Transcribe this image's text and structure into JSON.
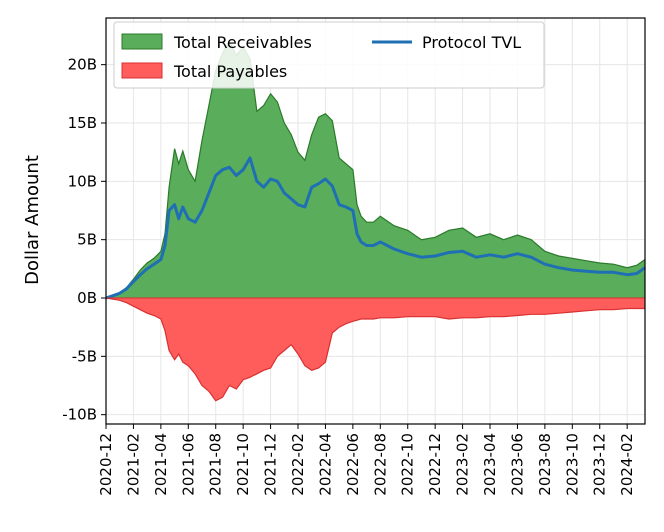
{
  "chart_data": {
    "type": "area",
    "title": "",
    "xlabel": "",
    "ylabel": "Dollar Amount",
    "ylim": [
      -10.8,
      24
    ],
    "y_unit": "billions USD",
    "yticks": [
      -10,
      -5,
      0,
      5,
      10,
      15,
      20
    ],
    "ytick_labels": [
      "-10B",
      "-5B",
      "0B",
      "5B",
      "10B",
      "15B",
      "20B"
    ],
    "xlim": [
      0,
      39.3
    ],
    "x_unit": "months since 2020-12",
    "xticks": [
      0,
      2,
      4,
      6,
      8,
      10,
      12,
      14,
      16,
      18,
      20,
      22,
      24,
      26,
      28,
      30,
      32,
      34,
      36,
      38
    ],
    "xtick_labels": [
      "2020-12",
      "2021-02",
      "2021-04",
      "2021-06",
      "2021-08",
      "2021-10",
      "2021-12",
      "2022-02",
      "2022-04",
      "2022-06",
      "2022-08",
      "2022-10",
      "2022-12",
      "2023-02",
      "2023-04",
      "2023-06",
      "2023-08",
      "2023-10",
      "2023-12",
      "2024-02"
    ],
    "grid": true,
    "legend_position": "top-left",
    "x": [
      0,
      0.5,
      1,
      1.5,
      2,
      2.5,
      3,
      3.5,
      4,
      4.3,
      4.6,
      5,
      5.3,
      5.6,
      6,
      6.5,
      7,
      7.5,
      8,
      8.5,
      9,
      9.5,
      10,
      10.5,
      11,
      11.5,
      12,
      12.5,
      13,
      13.5,
      14,
      14.5,
      15,
      15.5,
      16,
      16.5,
      17,
      17.5,
      18,
      18.3,
      18.6,
      19,
      19.5,
      20,
      21,
      22,
      23,
      24,
      25,
      26,
      27,
      28,
      29,
      30,
      31,
      32,
      33,
      34,
      35,
      36,
      37,
      38,
      38.7,
      39.3
    ],
    "series": [
      {
        "name": "Total Receivables",
        "color": "#5aad5a",
        "edge_color": "#2b7a2b",
        "kind": "area",
        "values": [
          0,
          0.2,
          0.4,
          0.9,
          1.6,
          2.4,
          3.0,
          3.4,
          4.0,
          5.5,
          9.5,
          12.8,
          11.5,
          12.6,
          11.0,
          10.0,
          13.5,
          16.5,
          19.5,
          21.0,
          22.0,
          20.8,
          21.5,
          20.5,
          16.0,
          16.5,
          17.5,
          16.8,
          15.0,
          14.0,
          12.5,
          11.8,
          14.0,
          15.5,
          15.8,
          15.2,
          12.0,
          11.5,
          11.0,
          8.0,
          7.0,
          6.5,
          6.5,
          7.0,
          6.2,
          5.8,
          5.0,
          5.2,
          5.8,
          6.0,
          5.2,
          5.5,
          5.0,
          5.4,
          5.0,
          4.0,
          3.6,
          3.4,
          3.2,
          3.0,
          2.9,
          2.6,
          2.8,
          3.3
        ]
      },
      {
        "name": "Total Payables",
        "color": "#ff5c5c",
        "edge_color": "#d93030",
        "kind": "area",
        "values": [
          0,
          -0.1,
          -0.2,
          -0.4,
          -0.7,
          -1.0,
          -1.3,
          -1.5,
          -1.8,
          -2.8,
          -4.5,
          -5.3,
          -4.8,
          -5.5,
          -5.8,
          -6.5,
          -7.5,
          -8.0,
          -8.8,
          -8.5,
          -7.5,
          -7.8,
          -7.0,
          -6.8,
          -6.5,
          -6.2,
          -6.0,
          -5.0,
          -4.5,
          -4.0,
          -4.8,
          -5.8,
          -6.2,
          -6.0,
          -5.5,
          -3.0,
          -2.5,
          -2.2,
          -2.0,
          -1.9,
          -1.8,
          -1.8,
          -1.8,
          -1.7,
          -1.7,
          -1.6,
          -1.6,
          -1.6,
          -1.8,
          -1.7,
          -1.7,
          -1.6,
          -1.6,
          -1.5,
          -1.4,
          -1.4,
          -1.3,
          -1.2,
          -1.1,
          -1.0,
          -1.0,
          -0.9,
          -0.9,
          -0.9
        ]
      },
      {
        "name": "Protocol TVL",
        "color": "#1f6fb5",
        "kind": "line",
        "values": [
          0,
          0.2,
          0.4,
          0.8,
          1.4,
          2.0,
          2.5,
          2.9,
          3.3,
          4.5,
          7.5,
          8.0,
          6.8,
          7.8,
          6.8,
          6.5,
          7.5,
          9.0,
          10.5,
          11.0,
          11.2,
          10.5,
          11.0,
          12.0,
          10.0,
          9.5,
          10.2,
          10.0,
          9.0,
          8.5,
          8.0,
          7.8,
          9.5,
          9.8,
          10.2,
          9.6,
          8.0,
          7.8,
          7.5,
          5.5,
          4.8,
          4.5,
          4.5,
          4.8,
          4.2,
          3.8,
          3.5,
          3.6,
          3.9,
          4.0,
          3.5,
          3.7,
          3.5,
          3.8,
          3.5,
          2.9,
          2.6,
          2.4,
          2.3,
          2.2,
          2.2,
          2.0,
          2.1,
          2.6
        ]
      }
    ]
  }
}
